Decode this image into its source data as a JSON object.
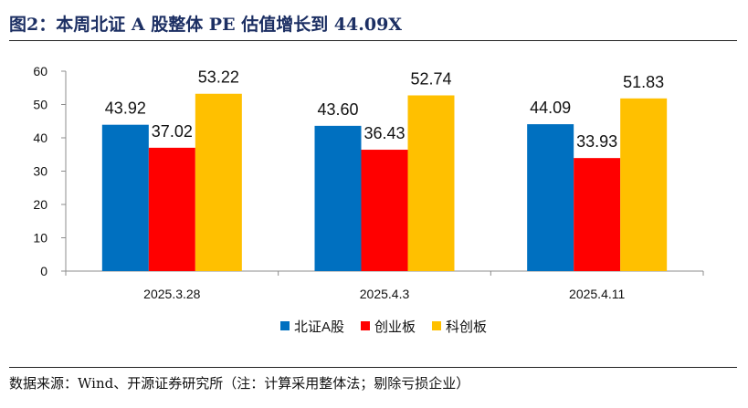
{
  "figure": {
    "title": "图2：本周北证 A 股整体 PE 估值增长到 44.09X",
    "source": "数据来源：Wind、开源证券研究所（注：计算采用整体法；剔除亏损企业）"
  },
  "chart_data": {
    "type": "bar",
    "categories": [
      "2025.3.28",
      "2025.4.3",
      "2025.4.11"
    ],
    "series": [
      {
        "name": "北证A股",
        "color": "#0070c0",
        "values": [
          43.92,
          43.6,
          44.09
        ]
      },
      {
        "name": "创业板",
        "color": "#ff0000",
        "values": [
          37.02,
          36.43,
          33.93
        ]
      },
      {
        "name": "科创板",
        "color": "#ffc000",
        "values": [
          53.22,
          52.74,
          51.83
        ]
      }
    ],
    "ylim": [
      0,
      60
    ],
    "yticks": [
      0,
      10,
      20,
      30,
      40,
      50,
      60
    ],
    "grid": false,
    "legend_position": "bottom-center",
    "data_labels": true
  }
}
